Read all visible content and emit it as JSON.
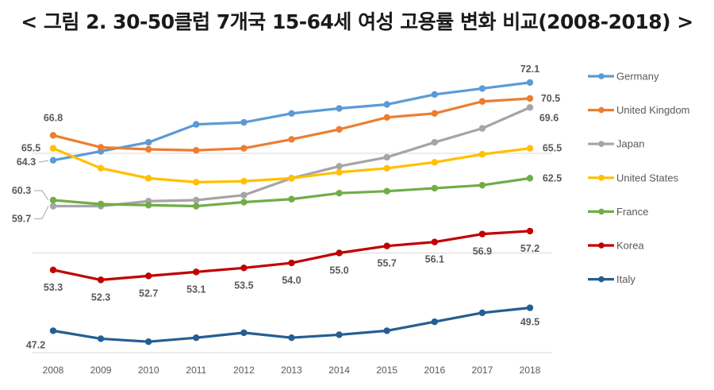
{
  "chart_data": {
    "type": "line",
    "title": "< 그림 2. 30-50클럽 7개국 15-64세 여성 고용률 변화 비교(2008-2018) >",
    "xlabel": "",
    "ylabel": "",
    "x": [
      "2008",
      "2009",
      "2010",
      "2011",
      "2012",
      "2013",
      "2014",
      "2015",
      "2016",
      "2017",
      "2018"
    ],
    "ylim": [
      45,
      74.5
    ],
    "gridlines": [
      45,
      55,
      65
    ],
    "grid": true,
    "y_tick_labels_shown": false,
    "legend": "right",
    "series": [
      {
        "name": "Germany",
        "color": "#5B9BD5",
        "values": [
          64.3,
          65.2,
          66.1,
          67.9,
          68.1,
          69.0,
          69.5,
          69.9,
          70.9,
          71.5,
          72.1
        ],
        "labels": [
          {
            "x": "2008",
            "text": "64.3"
          },
          {
            "x": "2018",
            "text": "72.1"
          }
        ]
      },
      {
        "name": "United Kingdom",
        "color": "#ED7D31",
        "values": [
          66.8,
          65.6,
          65.4,
          65.3,
          65.5,
          66.4,
          67.4,
          68.6,
          69.0,
          70.2,
          70.5
        ],
        "labels": [
          {
            "x": "2008",
            "text": "66.8"
          },
          {
            "x": "2018",
            "text": "70.5"
          }
        ]
      },
      {
        "name": "Japan",
        "color": "#A5A5A5",
        "values": [
          59.7,
          59.7,
          60.2,
          60.3,
          60.8,
          62.5,
          63.7,
          64.6,
          66.1,
          67.5,
          69.6
        ],
        "labels": [
          {
            "x": "2008",
            "text": "59.7"
          },
          {
            "x": "2018",
            "text": "69.6"
          }
        ]
      },
      {
        "name": "United States",
        "color": "#FFC000",
        "values": [
          65.5,
          63.5,
          62.5,
          62.1,
          62.2,
          62.5,
          63.1,
          63.5,
          64.1,
          64.9,
          65.5
        ],
        "labels": [
          {
            "x": "2008",
            "text": "65.5"
          },
          {
            "x": "2018",
            "text": "65.5"
          }
        ]
      },
      {
        "name": "France",
        "color": "#70AD47",
        "values": [
          60.3,
          59.9,
          59.8,
          59.7,
          60.1,
          60.4,
          61.0,
          61.2,
          61.5,
          61.8,
          62.5
        ],
        "labels": [
          {
            "x": "2008",
            "text": "60.3"
          },
          {
            "x": "2018",
            "text": "62.5"
          }
        ]
      },
      {
        "name": "Korea",
        "color": "#C00000",
        "values": [
          53.3,
          52.3,
          52.7,
          53.1,
          53.5,
          54.0,
          55.0,
          55.7,
          56.1,
          56.9,
          57.2
        ],
        "labels": [
          {
            "x": "2008",
            "text": "53.3"
          },
          {
            "x": "2009",
            "text": "52.3"
          },
          {
            "x": "2010",
            "text": "52.7"
          },
          {
            "x": "2011",
            "text": "53.1"
          },
          {
            "x": "2012",
            "text": "53.5"
          },
          {
            "x": "2013",
            "text": "54.0"
          },
          {
            "x": "2014",
            "text": "55.0"
          },
          {
            "x": "2015",
            "text": "55.7"
          },
          {
            "x": "2016",
            "text": "56.1"
          },
          {
            "x": "2017",
            "text": "56.9"
          },
          {
            "x": "2018",
            "text": "57.2"
          }
        ]
      },
      {
        "name": "Italy",
        "color": "#255E91",
        "values": [
          47.2,
          46.4,
          46.1,
          46.5,
          47.0,
          46.5,
          46.8,
          47.2,
          48.1,
          49.0,
          49.5
        ],
        "labels": [
          {
            "x": "2008",
            "text": "47.2"
          },
          {
            "x": "2018",
            "text": "49.5"
          }
        ]
      }
    ]
  }
}
